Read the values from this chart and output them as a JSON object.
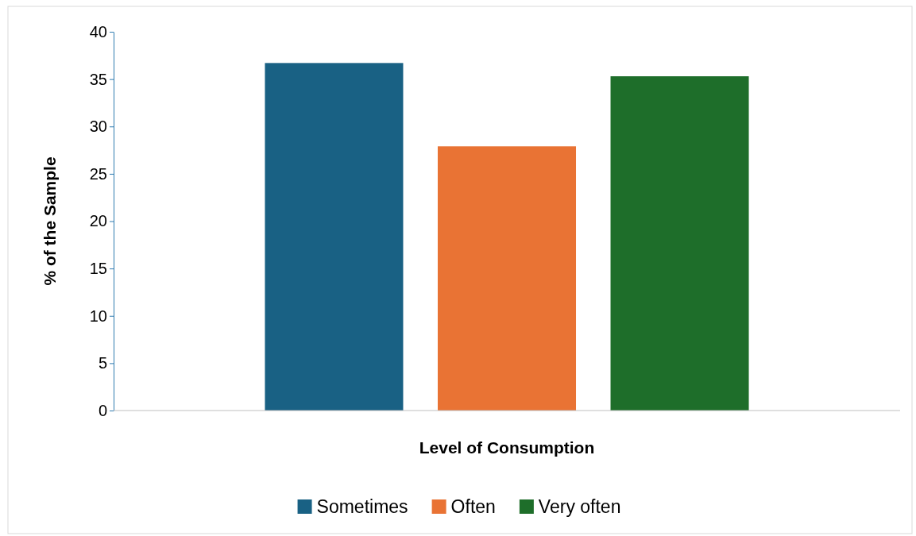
{
  "chart_data": {
    "type": "bar",
    "xlabel": "Level of Consumption",
    "ylabel": "% of the Sample",
    "categories": [
      null
    ],
    "series": [
      {
        "name": "Sometimes",
        "color": "#196184",
        "values": [
          36.7
        ]
      },
      {
        "name": "Often",
        "color": "#e97334",
        "values": [
          27.9
        ]
      },
      {
        "name": "Very often",
        "color": "#1e6e2a",
        "values": [
          35.3
        ]
      }
    ],
    "ylim": [
      0,
      40
    ],
    "yticks": [
      0,
      5,
      10,
      15,
      20,
      25,
      30,
      35,
      40
    ],
    "grid": false,
    "legend": "bottom"
  }
}
